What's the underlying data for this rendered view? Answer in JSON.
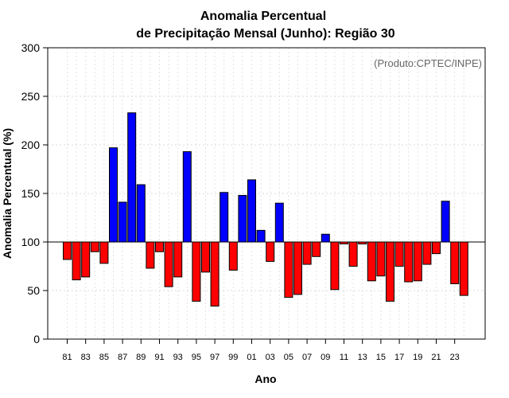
{
  "chart_data": {
    "type": "bar",
    "title_line1": "Anomalia Percentual",
    "title_line2": "de Precipitação Mensal (Junho): Região 30",
    "xlabel": "Ano",
    "ylabel": "Anomalia Percentual (%)",
    "credit": "(Produto:CPTEC/INPE)",
    "ylim": [
      0,
      300
    ],
    "yticks": [
      0,
      50,
      100,
      150,
      200,
      250,
      300
    ],
    "baseline": 100,
    "colors": {
      "above": "#0000ff",
      "below": "#ff0000"
    },
    "categories": [
      "81",
      "82",
      "83",
      "84",
      "85",
      "86",
      "87",
      "88",
      "89",
      "90",
      "91",
      "92",
      "93",
      "94",
      "95",
      "96",
      "97",
      "98",
      "99",
      "00",
      "01",
      "02",
      "03",
      "04",
      "05",
      "06",
      "07",
      "08",
      "09",
      "10",
      "11",
      "12",
      "13",
      "14",
      "15",
      "16",
      "17",
      "18",
      "19",
      "20",
      "21",
      "22",
      "23",
      "24"
    ],
    "tick_labels": [
      "81",
      "83",
      "85",
      "87",
      "89",
      "91",
      "93",
      "95",
      "97",
      "99",
      "01",
      "03",
      "05",
      "07",
      "09",
      "11",
      "13",
      "15",
      "17",
      "19",
      "21",
      "23"
    ],
    "values": [
      82,
      61,
      64,
      90,
      78,
      197,
      141,
      233,
      159,
      73,
      90,
      54,
      64,
      193,
      39,
      69,
      34,
      151,
      71,
      148,
      164,
      112,
      80,
      140,
      43,
      46,
      77,
      85,
      108,
      51,
      98,
      75,
      98,
      60,
      65,
      39,
      75,
      59,
      60,
      77,
      88,
      142,
      57,
      45
    ]
  }
}
